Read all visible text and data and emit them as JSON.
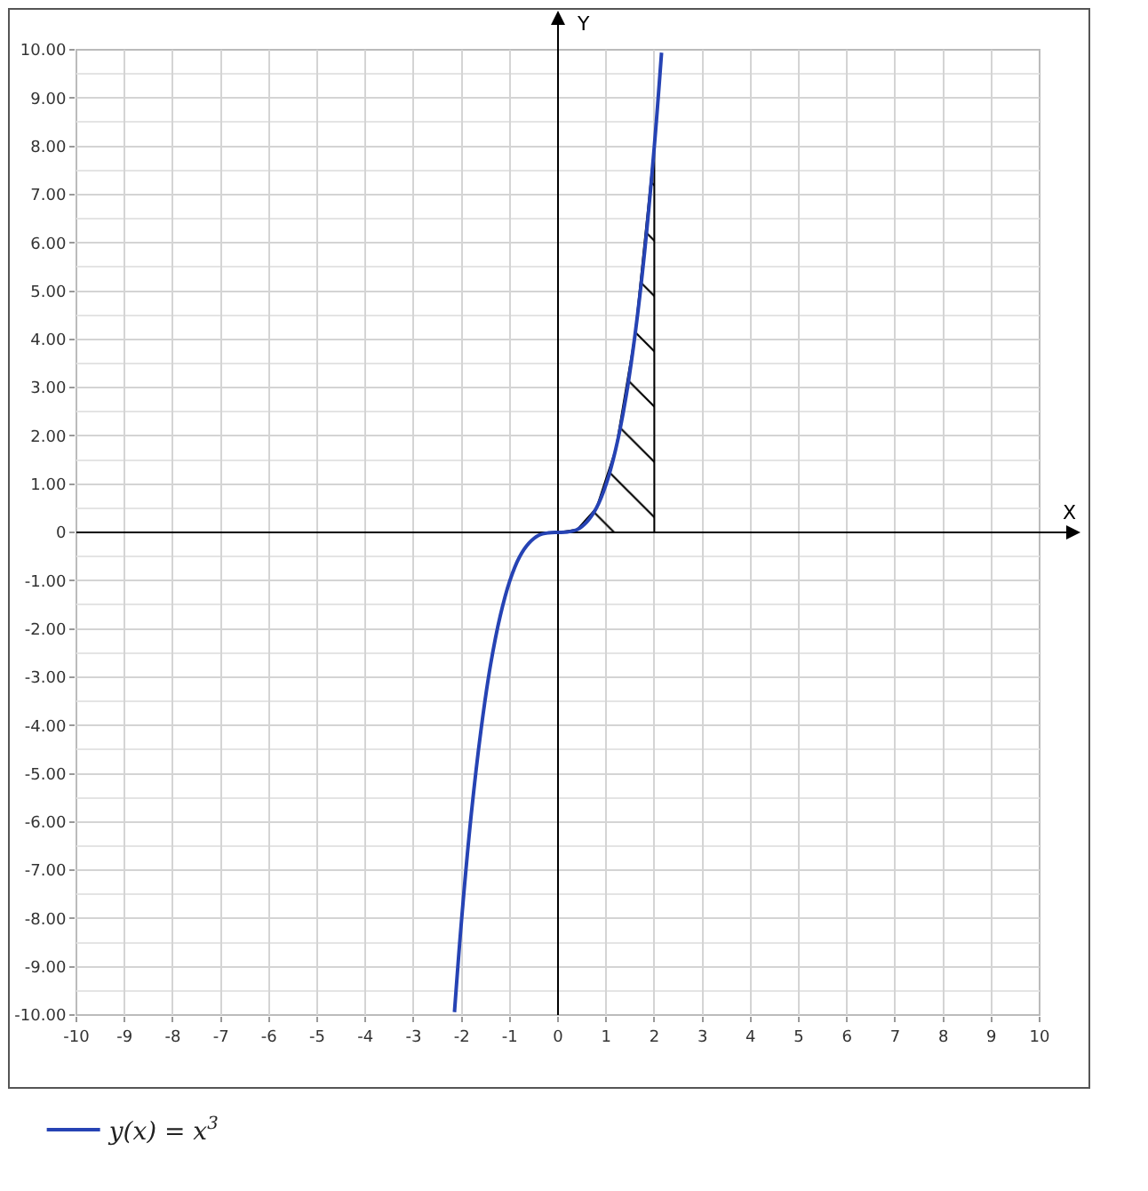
{
  "chart_data": {
    "type": "line",
    "xlabel": "X",
    "ylabel": "Y",
    "series": [
      {
        "type": "area",
        "color": "#000000",
        "x": [
          0,
          0.4,
          0.8,
          1.2,
          1.6,
          2,
          2
        ],
        "values": [
          0,
          0.06,
          0.51,
          1.73,
          4.1,
          8,
          0
        ]
      },
      {
        "name": "y(x) = x$^{3}$",
        "color": "#2643b4",
        "x": [
          -2.15,
          -2,
          -1.8,
          -1.6,
          -1.4,
          -1.2,
          -1,
          -0.8,
          -0.6,
          -0.4,
          -0.2,
          0,
          0.2,
          0.4,
          0.6,
          0.8,
          1,
          1.2,
          1.4,
          1.6,
          1.8,
          2,
          2.15
        ],
        "values": [
          -9.94,
          -8,
          -5.83,
          -4.1,
          -2.74,
          -1.73,
          -1,
          -0.51,
          -0.22,
          -0.06,
          -0.01,
          0,
          0.01,
          0.06,
          0.22,
          0.51,
          1,
          1.73,
          2.74,
          4.1,
          5.83,
          8,
          9.94
        ]
      }
    ],
    "xlim": [
      -10,
      10
    ],
    "xticks": [
      -10,
      -9,
      -8,
      -7,
      -6,
      -5,
      -4,
      -3,
      -2,
      -1,
      0,
      1,
      2,
      3,
      4,
      5,
      6,
      7,
      8,
      9,
      10
    ],
    "ylim": [
      -10,
      10
    ],
    "yticks": [
      {
        "value": -10,
        "label": "-10.00"
      },
      {
        "value": -9,
        "label": "-9.00"
      },
      {
        "value": -8,
        "label": "-8.00"
      },
      {
        "value": -7,
        "label": "-7.00"
      },
      {
        "value": -6,
        "label": "-6.00"
      },
      {
        "value": -5,
        "label": "-5.00"
      },
      {
        "value": -4,
        "label": "-4.00"
      },
      {
        "value": -3,
        "label": "-3.00"
      },
      {
        "value": -2,
        "label": "-2.00"
      },
      {
        "value": -1,
        "label": "-1.00"
      },
      0,
      {
        "value": 1,
        "label": "1.00"
      },
      {
        "value": 2,
        "label": "2.00"
      },
      {
        "value": 3,
        "label": "3.00"
      },
      {
        "value": 4,
        "label": "4.00"
      },
      {
        "value": 5,
        "label": "5.00"
      },
      {
        "value": 6,
        "label": "6.00"
      },
      {
        "value": 7,
        "label": "7.00"
      },
      {
        "value": 8,
        "label": "8.00"
      },
      {
        "value": 9,
        "label": "9.00"
      },
      {
        "value": 10,
        "label": "10.00"
      }
    ],
    "grid": true,
    "legend": "bottom left",
    "marker": "none",
    "line_style": "solid"
  }
}
